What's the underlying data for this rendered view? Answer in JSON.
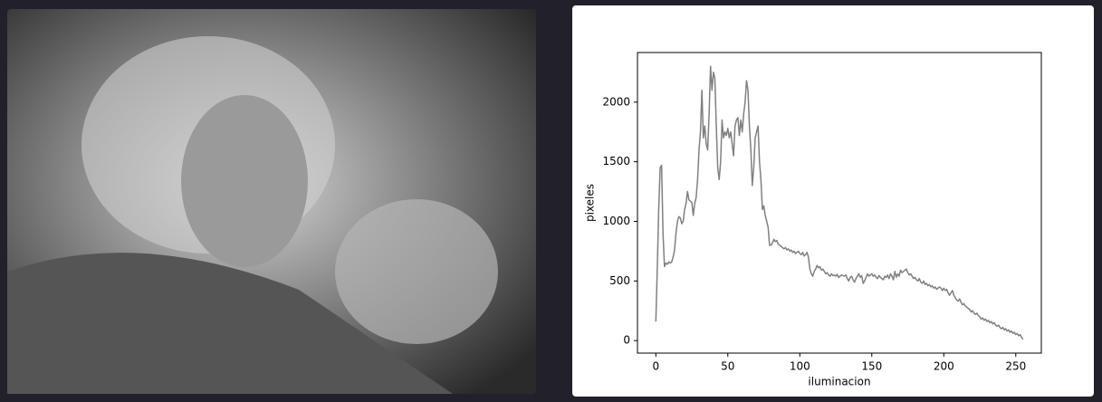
{
  "chart_data": {
    "type": "line",
    "xlabel": "iluminacion",
    "ylabel": "pixeles",
    "x": [
      0,
      1,
      2,
      3,
      4,
      5,
      6,
      7,
      8,
      9,
      10,
      11,
      12,
      13,
      14,
      15,
      16,
      17,
      18,
      19,
      20,
      21,
      22,
      23,
      24,
      25,
      26,
      27,
      28,
      29,
      30,
      31,
      32,
      33,
      34,
      35,
      36,
      37,
      38,
      39,
      40,
      41,
      42,
      43,
      44,
      45,
      46,
      47,
      48,
      49,
      50,
      51,
      52,
      53,
      54,
      55,
      56,
      57,
      58,
      59,
      60,
      61,
      62,
      63,
      64,
      65,
      66,
      67,
      68,
      69,
      70,
      71,
      72,
      73,
      74,
      75,
      76,
      77,
      78,
      79,
      80,
      81,
      82,
      83,
      84,
      85,
      86,
      87,
      88,
      89,
      90,
      91,
      92,
      93,
      94,
      95,
      96,
      97,
      98,
      99,
      100,
      101,
      102,
      103,
      104,
      105,
      106,
      107,
      108,
      109,
      110,
      111,
      112,
      113,
      114,
      115,
      116,
      117,
      118,
      119,
      120,
      121,
      122,
      123,
      124,
      125,
      126,
      127,
      128,
      129,
      130,
      131,
      132,
      133,
      134,
      135,
      136,
      137,
      138,
      139,
      140,
      141,
      142,
      143,
      144,
      145,
      146,
      147,
      148,
      149,
      150,
      151,
      152,
      153,
      154,
      155,
      156,
      157,
      158,
      159,
      160,
      161,
      162,
      163,
      164,
      165,
      166,
      167,
      168,
      169,
      170,
      171,
      172,
      173,
      174,
      175,
      176,
      177,
      178,
      179,
      180,
      181,
      182,
      183,
      184,
      185,
      186,
      187,
      188,
      189,
      190,
      191,
      192,
      193,
      194,
      195,
      196,
      197,
      198,
      199,
      200,
      201,
      202,
      203,
      204,
      205,
      206,
      207,
      208,
      209,
      210,
      211,
      212,
      213,
      214,
      215,
      216,
      217,
      218,
      219,
      220,
      221,
      222,
      223,
      224,
      225,
      226,
      227,
      228,
      229,
      230,
      231,
      232,
      233,
      234,
      235,
      236,
      237,
      238,
      239,
      240,
      241,
      242,
      243,
      244,
      245,
      246,
      247,
      248,
      249,
      250,
      251,
      252,
      253,
      254,
      255
    ],
    "series": [
      {
        "color": "#808080",
        "values": [
          160,
          600,
          1100,
          1450,
          1470,
          900,
          620,
          650,
          640,
          660,
          650,
          660,
          700,
          760,
          900,
          1000,
          1040,
          1030,
          980,
          1000,
          1100,
          1150,
          1250,
          1180,
          1170,
          1160,
          1050,
          1150,
          1200,
          1350,
          1600,
          1750,
          2100,
          1700,
          1800,
          1650,
          1600,
          1900,
          2300,
          2100,
          2250,
          2200,
          1800,
          1450,
          1350,
          1500,
          1850,
          1700,
          1750,
          1720,
          1780,
          1700,
          1750,
          1650,
          1550,
          1800,
          1850,
          1870,
          1720,
          1850,
          1750,
          1900,
          2000,
          2180,
          2100,
          1800,
          1600,
          1300,
          1450,
          1700,
          1750,
          1800,
          1500,
          1350,
          1100,
          1130,
          1050,
          1000,
          950,
          800,
          800,
          820,
          850,
          830,
          840,
          810,
          800,
          790,
          780,
          770,
          780,
          760,
          770,
          750,
          760,
          740,
          750,
          730,
          740,
          750,
          730,
          720,
          740,
          710,
          720,
          740,
          700,
          600,
          560,
          540,
          580,
          600,
          630,
          610,
          620,
          590,
          600,
          580,
          560,
          570,
          550,
          540,
          560,
          545,
          550,
          540,
          555,
          530,
          540,
          550,
          545,
          540,
          550,
          520,
          500,
          530,
          540,
          510,
          490,
          520,
          540,
          560,
          530,
          545,
          480,
          500,
          530,
          560,
          540,
          550,
          560,
          540,
          550,
          530,
          520,
          545,
          530,
          520,
          510,
          540,
          530,
          550,
          520,
          560,
          540,
          510,
          580,
          530,
          560,
          540,
          590,
          570,
          580,
          590,
          600,
          570,
          550,
          560,
          540,
          520,
          530,
          510,
          500,
          520,
          490,
          480,
          500,
          470,
          480,
          460,
          470,
          450,
          460,
          440,
          450,
          430,
          440,
          450,
          440,
          420,
          440,
          420,
          430,
          400,
          380,
          400,
          420,
          380,
          360,
          340,
          330,
          350,
          320,
          300,
          310,
          290,
          280,
          270,
          260,
          240,
          250,
          230,
          220,
          230,
          210,
          200,
          180,
          190,
          170,
          180,
          160,
          170,
          150,
          160,
          140,
          150,
          130,
          120,
          130,
          110,
          100,
          110,
          90,
          100,
          80,
          90,
          70,
          80,
          60,
          70,
          50,
          60,
          40,
          50,
          30,
          10
        ]
      }
    ],
    "xlim": [
      -12.75,
      267.75
    ],
    "ylim": [
      -105,
      2416
    ],
    "xticks": [
      0,
      50,
      100,
      150,
      200,
      250
    ],
    "yticks": [
      0,
      500,
      1000,
      1500,
      2000
    ],
    "grid": false
  }
}
